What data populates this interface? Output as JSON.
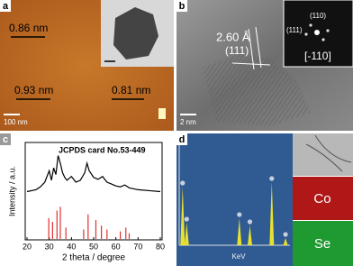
{
  "a": {
    "label": "a",
    "heights": [
      "0.86 nm",
      "0.93 nm",
      "0.81 nm"
    ],
    "scale": "100 nm"
  },
  "b": {
    "label": "b",
    "spacing": "2.60 Å",
    "plane": "(111)",
    "fft_spots": [
      "(110)",
      "(111)"
    ],
    "zone_axis": "[-110]",
    "scale": "2 nm"
  },
  "chart_data": {
    "type": "line",
    "panel": "c",
    "ylabel": "Intensity / a.u.",
    "xlabel": "2 theta / degree",
    "xlim": [
      20,
      80
    ],
    "xticks": [
      20,
      30,
      40,
      50,
      60,
      70,
      80
    ],
    "ylim": [
      0,
      100
    ],
    "series": [
      {
        "color": "#000000",
        "x": [
          20,
          24,
          26,
          28,
          30,
          31,
          32,
          33,
          34,
          35,
          36,
          37,
          38,
          40,
          42,
          44,
          46,
          47,
          48,
          50,
          52,
          54,
          56,
          58,
          60,
          62,
          64,
          66,
          70,
          75,
          80
        ],
        "values": [
          50,
          52,
          55,
          60,
          72,
          62,
          75,
          68,
          88,
          80,
          70,
          65,
          62,
          66,
          60,
          62,
          70,
          80,
          72,
          65,
          63,
          66,
          60,
          58,
          56,
          55,
          57,
          54,
          52,
          51,
          50
        ]
      },
      {
        "name": "JCPDS card No.53-449",
        "color": "#e03030",
        "x": [
          29.8,
          31.5,
          33.5,
          35,
          37.5,
          45.5,
          47.5,
          51,
          53.5,
          56,
          62,
          64.5,
          66
        ],
        "values": [
          22,
          18,
          30,
          34,
          12,
          10,
          26,
          20,
          14,
          10,
          8,
          12,
          6
        ]
      }
    ]
  },
  "d": {
    "label": "d",
    "xlabel": "KeV",
    "maps": [
      "Co",
      "Se"
    ],
    "spectrum": {
      "x": [
        0.2,
        0.7,
        7.2,
        8.5,
        11.2,
        12.9
      ],
      "values": [
        65,
        25,
        30,
        22,
        70,
        8
      ]
    }
  }
}
